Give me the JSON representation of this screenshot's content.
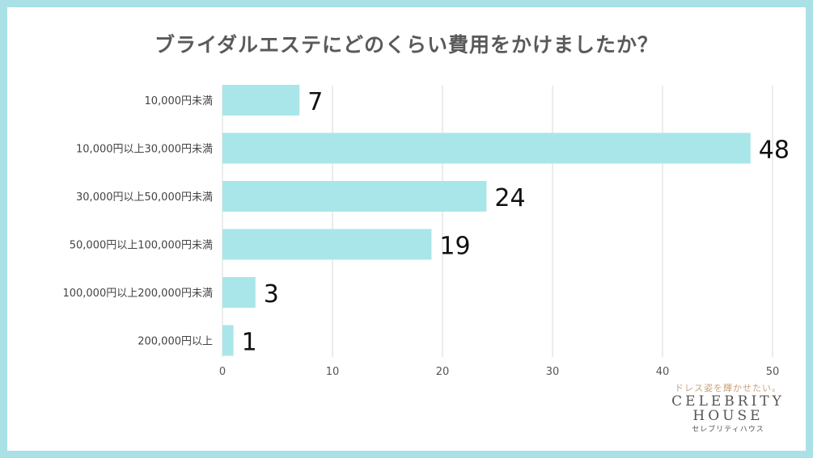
{
  "chart_data": {
    "type": "bar",
    "orientation": "horizontal",
    "title": "ブライダルエステにどのくらい費用をかけましたか？",
    "categories": [
      "10,000円未満",
      "10,000円以上30,000円未満",
      "30,000円以上50,000円未満",
      "50,000円以上100,000円未満",
      "100,000円以上200,000円未満",
      "200,000円以上"
    ],
    "values": [
      7,
      48,
      24,
      19,
      3,
      1
    ],
    "xlim": [
      0,
      50
    ],
    "xticks": [
      "0",
      "10",
      "20",
      "30",
      "40",
      "50"
    ],
    "grid": true,
    "bar_color": "#a9e6e9",
    "grid_color": "#d9d9d9"
  },
  "logo": {
    "tagline": "ドレス姿を輝かせたい。",
    "brand_line1": "CELEBRITY",
    "brand_line2": "HOUSE",
    "brand_kana": "セレブリティハウス"
  },
  "colors": {
    "frame": "#a9e1e7",
    "title": "#5a5a5a",
    "tagline": "#c8a27a"
  }
}
